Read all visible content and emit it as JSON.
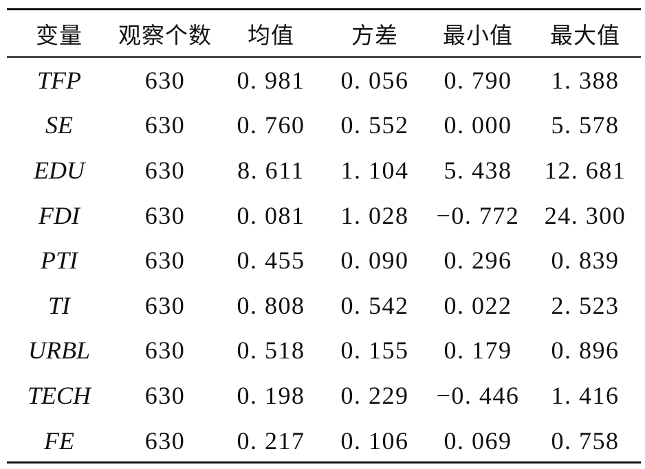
{
  "table": {
    "headers": [
      "变量",
      "观察个数",
      "均值",
      "方差",
      "最小值",
      "最大值"
    ],
    "rows": [
      {
        "variable": "TFP",
        "n": "630",
        "mean": "0. 981",
        "variance": "0. 056",
        "min": "0. 790",
        "max": "1. 388"
      },
      {
        "variable": "SE",
        "n": "630",
        "mean": "0. 760",
        "variance": "0. 552",
        "min": "0. 000",
        "max": "5. 578"
      },
      {
        "variable": "EDU",
        "n": "630",
        "mean": "8. 611",
        "variance": "1. 104",
        "min": "5. 438",
        "max": "12. 681"
      },
      {
        "variable": "FDI",
        "n": "630",
        "mean": "0. 081",
        "variance": "1. 028",
        "min": "−0. 772",
        "max": "24. 300"
      },
      {
        "variable": "PTI",
        "n": "630",
        "mean": "0. 455",
        "variance": "0. 090",
        "min": "0. 296",
        "max": "0. 839"
      },
      {
        "variable": "TI",
        "n": "630",
        "mean": "0. 808",
        "variance": "0. 542",
        "min": "0. 022",
        "max": "2. 523"
      },
      {
        "variable": "URBL",
        "n": "630",
        "mean": "0. 518",
        "variance": "0. 155",
        "min": "0. 179",
        "max": "0. 896"
      },
      {
        "variable": "TECH",
        "n": "630",
        "mean": "0. 198",
        "variance": "0. 229",
        "min": "−0. 446",
        "max": "1. 416"
      },
      {
        "variable": "FE",
        "n": "630",
        "mean": "0. 217",
        "variance": "0. 106",
        "min": "0. 069",
        "max": "0. 758"
      }
    ]
  }
}
